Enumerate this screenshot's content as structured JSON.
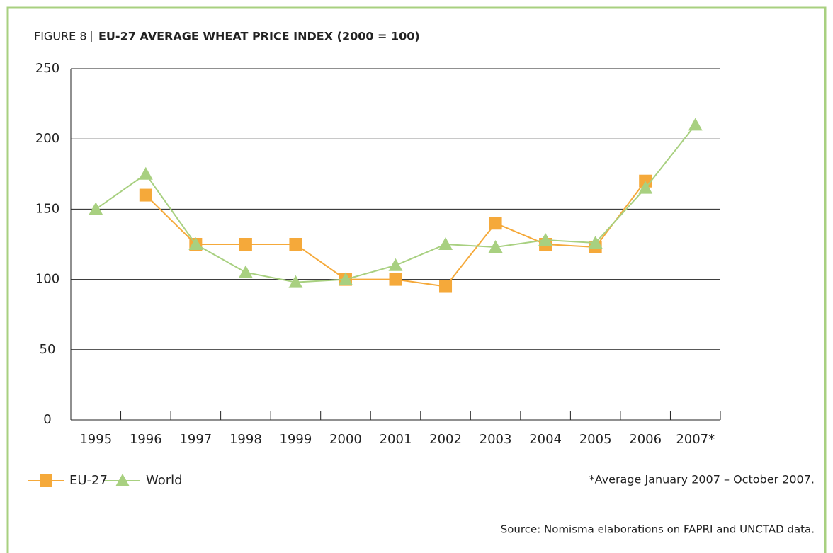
{
  "chart_data": {
    "type": "line",
    "figure_label": "FIGURE 8",
    "title": "EU-27 AVERAGE WHEAT PRICE INDEX (2000 = 100)",
    "categories": [
      "1995",
      "1996",
      "1997",
      "1998",
      "1999",
      "2000",
      "2001",
      "2002",
      "2003",
      "2004",
      "2005",
      "2006",
      "2007*"
    ],
    "series": [
      {
        "name": "EU-27",
        "color": "#f5a93a",
        "marker": "square",
        "values": [
          null,
          160,
          125,
          125,
          125,
          100,
          100,
          95,
          140,
          125,
          123,
          170,
          null
        ]
      },
      {
        "name": "World",
        "color": "#a8d080",
        "marker": "triangle",
        "values": [
          150,
          175,
          125,
          105,
          98,
          100,
          110,
          125,
          123,
          128,
          126,
          165,
          210
        ]
      }
    ],
    "ylim": [
      0,
      250
    ],
    "yticks": [
      0,
      50,
      100,
      150,
      200,
      250
    ],
    "grid": true,
    "legend": "bottom-left",
    "footnote": "*Average January 2007 – October 2007.",
    "source": "Source: Nomisma elaborations on FAPRI and UNCTAD data."
  }
}
